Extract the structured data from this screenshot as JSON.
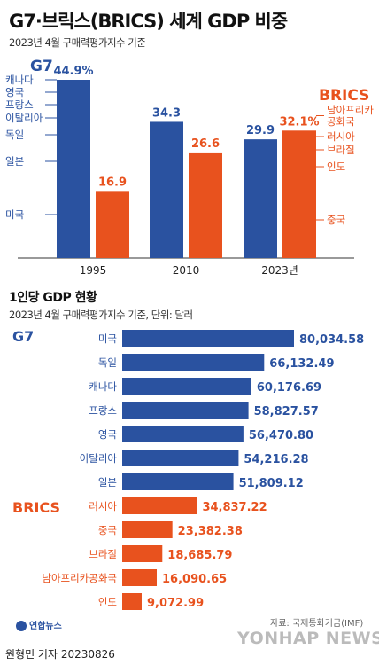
{
  "header": {
    "title": "G7·브릭스(BRICS) 세계 GDP 비중",
    "subtitle": "2023년 4월 구매력평가지수 기준"
  },
  "colors": {
    "g7": "#2a52a0",
    "brics": "#e8521e",
    "axis": "#333333"
  },
  "section2": {
    "title": "1인당 GDP 현황",
    "subtitle": "2023년 4월 구매력평가지수 기준, 단위: 달러"
  },
  "footer": {
    "logo_text": "연합뉴스",
    "watermark": "YONHAP NEWS",
    "source": "자료: 국제통화기금(IMF)",
    "byline": "원형민 기자  20230826"
  },
  "chart_data": [
    {
      "type": "bar",
      "title": "G7·브릭스(BRICS) 세계 GDP 비중",
      "categories": [
        "1995",
        "2010",
        "2023년"
      ],
      "series": [
        {
          "name": "G7",
          "values": [
            44.9,
            34.3,
            29.9
          ],
          "labels": [
            "44.9%",
            "34.3",
            "29.9"
          ]
        },
        {
          "name": "BRICS",
          "values": [
            16.9,
            26.6,
            32.1
          ],
          "labels": [
            "16.9",
            "26.6",
            "32.1%"
          ]
        }
      ],
      "ylim": [
        0,
        50
      ],
      "annotations": {
        "g7_members": [
          "캐나다",
          "영국",
          "프랑스",
          "이탈리아",
          "독일",
          "일본",
          "미국"
        ],
        "brics_members": [
          "남아프리카\n공화국",
          "러시아",
          "브라질",
          "인도",
          "중국"
        ]
      },
      "legend": [
        "G7",
        "BRICS"
      ]
    },
    {
      "type": "bar",
      "orientation": "horizontal",
      "title": "1인당 GDP 현황",
      "groups": [
        {
          "name": "G7",
          "categories": [
            "미국",
            "독일",
            "캐나다",
            "프랑스",
            "영국",
            "이탈리아",
            "일본"
          ],
          "values": [
            80034.58,
            66132.49,
            60176.69,
            58827.57,
            56470.8,
            54216.28,
            51809.12
          ],
          "labels": [
            "80,034.58",
            "66,132.49",
            "60,176.69",
            "58,827.57",
            "56,470.80",
            "54,216.28",
            "51,809.12"
          ]
        },
        {
          "name": "BRICS",
          "categories": [
            "러시아",
            "중국",
            "브라질",
            "남아프리카공화국",
            "인도"
          ],
          "values": [
            34837.22,
            23382.38,
            18685.79,
            16090.65,
            9072.99
          ],
          "labels": [
            "34,837.22",
            "23,382.38",
            "18,685.79",
            "16,090.65",
            "9,072.99"
          ]
        }
      ],
      "xlim": [
        0,
        80034.58
      ]
    }
  ]
}
